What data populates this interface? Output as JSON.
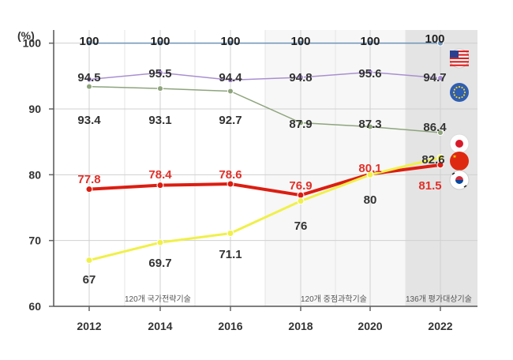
{
  "chart_data": {
    "type": "line",
    "y_unit_label": "(%)",
    "categories": [
      "2012",
      "2014",
      "2016",
      "2018",
      "2020",
      "2022"
    ],
    "y_ticks": [
      "60",
      "70",
      "80",
      "90",
      "100"
    ],
    "ylim": [
      60,
      102
    ],
    "grid": true,
    "series": [
      {
        "name": "USA",
        "flag": "usa-flag-icon",
        "color": "#6f93b8",
        "values": [
          100,
          100,
          100,
          100,
          100,
          100
        ],
        "labels": [
          "100",
          "100",
          "100",
          "100",
          "100",
          "100"
        ],
        "label_color": "#222222"
      },
      {
        "name": "EU",
        "flag": "eu-flag-icon",
        "color": "#a98fd0",
        "values": [
          94.5,
          95.5,
          94.4,
          94.8,
          95.6,
          94.7
        ],
        "labels": [
          "94.5",
          "95.5",
          "94.4",
          "94.8",
          "95.6",
          "94.7"
        ],
        "label_color": "#333333"
      },
      {
        "name": "Japan",
        "flag": "japan-flag-icon",
        "color": "#8ea47c",
        "values": [
          93.4,
          93.1,
          92.7,
          87.9,
          87.3,
          86.4
        ],
        "labels": [
          "93.4",
          "93.1",
          "92.7",
          "87.9",
          "87.3",
          "86.4"
        ],
        "label_color": "#333333"
      },
      {
        "name": "China",
        "flag": "china-flag-icon",
        "color": "#dc1e12",
        "values": [
          77.8,
          78.4,
          78.6,
          76.9,
          80.1,
          81.5
        ],
        "labels": [
          "77.8",
          "78.4",
          "78.6",
          "76.9",
          "80.1",
          "81.5"
        ],
        "label_color": "#e0312a"
      },
      {
        "name": "Korea",
        "flag": "korea-flag-icon",
        "color": "#f0f04a",
        "values": [
          67,
          69.7,
          71.1,
          76,
          80,
          82.6
        ],
        "labels": [
          "67",
          "69.7",
          "71.1",
          "76",
          "80",
          "82.6"
        ],
        "label_color": "#333333"
      }
    ],
    "period_labels": [
      "120개 국가전략기술",
      "120개 중점과학기술",
      "136개 평가대상기술"
    ]
  },
  "colors": {
    "background": "#ffffff",
    "plot_band_light": "#f7f7f7",
    "plot_band_dark": "#e4e4e4",
    "grid": "#d0d0d0"
  }
}
